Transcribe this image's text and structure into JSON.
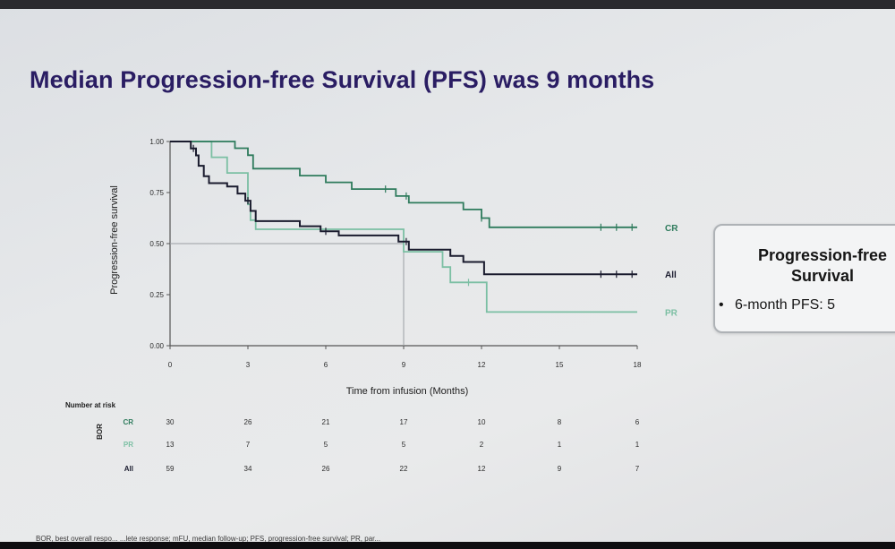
{
  "slide": {
    "title": "Median Progression-free Survival (PFS) was 9 months",
    "footnote": "BOR, best overall respo... ...lete response; mFU, median follow-up; PFS, progression-free survival; PR, par...",
    "side_box": {
      "title": "Progression-free\nSurvival",
      "bullet": "6-month PFS: 5"
    }
  },
  "colors": {
    "title": "#2a1d63",
    "CR": "#2e7b5c",
    "PR": "#7bbfa3",
    "All": "#1a1b2e"
  },
  "chart_data": {
    "type": "line",
    "step": true,
    "xlabel": "Time from infusion (Months)",
    "ylabel": "Progression-free survival",
    "xlim": [
      0,
      18
    ],
    "ylim": [
      0,
      1
    ],
    "x_ticks": [
      0,
      3,
      6,
      9,
      12,
      15,
      18
    ],
    "y_ticks": [
      "0.00",
      "0.25",
      "0.50",
      "0.75",
      "1.00"
    ],
    "median_marker": {
      "x": 9,
      "y": 0.5
    },
    "series": [
      {
        "name": "CR",
        "color": "#2e7b5c",
        "points": [
          [
            0,
            1.0
          ],
          [
            2.5,
            1.0
          ],
          [
            2.5,
            0.967
          ],
          [
            3.0,
            0.967
          ],
          [
            3.0,
            0.933
          ],
          [
            3.2,
            0.933
          ],
          [
            3.2,
            0.867
          ],
          [
            5.0,
            0.867
          ],
          [
            5.0,
            0.833
          ],
          [
            6.0,
            0.833
          ],
          [
            6.0,
            0.8
          ],
          [
            7.0,
            0.8
          ],
          [
            7.0,
            0.767
          ],
          [
            8.7,
            0.767
          ],
          [
            8.7,
            0.733
          ],
          [
            9.2,
            0.733
          ],
          [
            9.2,
            0.7
          ],
          [
            11.3,
            0.7
          ],
          [
            11.3,
            0.667
          ],
          [
            12.0,
            0.667
          ],
          [
            12.0,
            0.625
          ],
          [
            12.3,
            0.625
          ],
          [
            12.3,
            0.58
          ],
          [
            18.0,
            0.58
          ]
        ],
        "censor_x": [
          8.3,
          9.1,
          12.0,
          16.6,
          17.2,
          17.8
        ]
      },
      {
        "name": "PR",
        "color": "#7bbfa3",
        "points": [
          [
            0,
            1.0
          ],
          [
            1.6,
            1.0
          ],
          [
            1.6,
            0.923
          ],
          [
            2.2,
            0.923
          ],
          [
            2.2,
            0.846
          ],
          [
            3.0,
            0.846
          ],
          [
            3.0,
            0.692
          ],
          [
            3.1,
            0.692
          ],
          [
            3.1,
            0.615
          ],
          [
            3.3,
            0.615
          ],
          [
            3.3,
            0.57
          ],
          [
            9.0,
            0.57
          ],
          [
            9.0,
            0.46
          ],
          [
            10.5,
            0.46
          ],
          [
            10.5,
            0.385
          ],
          [
            10.8,
            0.385
          ],
          [
            10.8,
            0.31
          ],
          [
            12.2,
            0.31
          ],
          [
            12.2,
            0.165
          ],
          [
            18.0,
            0.165
          ]
        ],
        "censor_x": [
          11.5
        ]
      },
      {
        "name": "All",
        "color": "#1a1b2e",
        "points": [
          [
            0,
            1.0
          ],
          [
            0.8,
            1.0
          ],
          [
            0.8,
            0.966
          ],
          [
            1.0,
            0.966
          ],
          [
            1.0,
            0.932
          ],
          [
            1.1,
            0.932
          ],
          [
            1.1,
            0.881
          ],
          [
            1.3,
            0.881
          ],
          [
            1.3,
            0.83
          ],
          [
            1.5,
            0.83
          ],
          [
            1.5,
            0.796
          ],
          [
            2.2,
            0.796
          ],
          [
            2.2,
            0.78
          ],
          [
            2.6,
            0.78
          ],
          [
            2.6,
            0.745
          ],
          [
            2.9,
            0.745
          ],
          [
            2.9,
            0.71
          ],
          [
            3.1,
            0.71
          ],
          [
            3.1,
            0.66
          ],
          [
            3.3,
            0.66
          ],
          [
            3.3,
            0.61
          ],
          [
            5.0,
            0.61
          ],
          [
            5.0,
            0.585
          ],
          [
            5.8,
            0.585
          ],
          [
            5.8,
            0.56
          ],
          [
            6.5,
            0.56
          ],
          [
            6.5,
            0.54
          ],
          [
            8.8,
            0.54
          ],
          [
            8.8,
            0.51
          ],
          [
            9.2,
            0.51
          ],
          [
            9.2,
            0.47
          ],
          [
            10.8,
            0.47
          ],
          [
            10.8,
            0.44
          ],
          [
            11.3,
            0.44
          ],
          [
            11.3,
            0.41
          ],
          [
            12.1,
            0.41
          ],
          [
            12.1,
            0.35
          ],
          [
            18.0,
            0.35
          ]
        ],
        "censor_x": [
          0.9,
          3.0,
          6.0,
          9.1,
          16.6,
          17.2,
          17.8
        ]
      }
    ],
    "end_labels": [
      "CR",
      "All",
      "PR"
    ],
    "risk_table": {
      "header": "Number at risk",
      "group_label": "BOR",
      "time_points": [
        0,
        3,
        6,
        9,
        12,
        15,
        18
      ],
      "rows": [
        {
          "label": "CR",
          "color": "#2e7b5c",
          "values": [
            "30",
            "26",
            "21",
            "17",
            "10",
            "8",
            "6"
          ]
        },
        {
          "label": "PR",
          "color": "#7bbfa3",
          "values": [
            "13",
            "7",
            "5",
            "5",
            "2",
            "1",
            "1"
          ]
        },
        {
          "label": "All",
          "color": "#1a1b2e",
          "values": [
            "59",
            "34",
            "26",
            "22",
            "12",
            "9",
            "7"
          ]
        }
      ]
    }
  }
}
